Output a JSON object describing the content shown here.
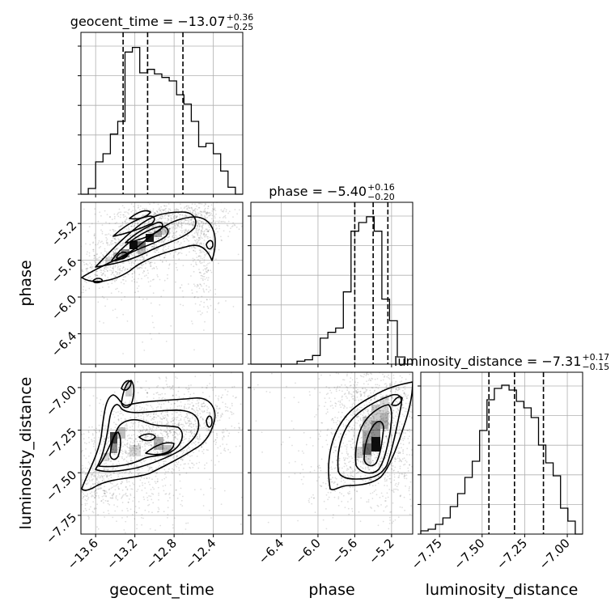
{
  "chart_data": {
    "type": "corner",
    "parameters": [
      {
        "name": "geocent_time",
        "median": -13.07,
        "plus": 0.36,
        "minus": 0.25,
        "lim": [
          -13.75,
          -12.1
        ],
        "ticks": [
          -13.6,
          -13.2,
          -12.8,
          -12.4
        ],
        "tick_labels": [
          "−13.6",
          "−13.2",
          "−12.8",
          "−12.4"
        ],
        "quantiles": [
          -13.32,
          -13.07,
          -12.71
        ]
      },
      {
        "name": "phase",
        "median": -5.4,
        "plus": 0.16,
        "minus": 0.2,
        "lim": [
          -6.73,
          -4.97
        ],
        "ticks": [
          -6.4,
          -6.0,
          -5.6,
          -5.2
        ],
        "tick_labels": [
          "−6.4",
          "−6.0",
          "−5.6",
          "−5.2"
        ],
        "quantiles": [
          -5.6,
          -5.4,
          -5.24
        ]
      },
      {
        "name": "luminosity_distance",
        "median": -7.31,
        "plus": 0.17,
        "minus": 0.15,
        "lim": [
          -7.86,
          -6.91
        ],
        "ticks": [
          -7.75,
          -7.5,
          -7.25,
          -7.0
        ],
        "tick_labels": [
          "−7.75",
          "−7.50",
          "−7.25",
          "−7.00"
        ],
        "quantiles": [
          -7.46,
          -7.31,
          -7.14
        ]
      }
    ],
    "titles": [
      {
        "base": "geocent_time = −13.07",
        "sup": "+0.36",
        "sub": "−0.25"
      },
      {
        "base": "phase = −5.40",
        "sup": "+0.16",
        "sub": "−0.20"
      },
      {
        "base": "luminosity_distance = −7.31",
        "sup": "+0.17",
        "sub": "−0.15"
      }
    ],
    "hist_geocent_time": [
      0.0,
      0.05,
      0.28,
      0.35,
      0.52,
      0.63,
      1.23,
      1.27,
      1.05,
      1.08,
      1.04,
      1.01,
      0.98,
      0.86,
      0.78,
      0.63,
      0.41,
      0.44,
      0.35,
      0.2,
      0.06,
      0.0
    ],
    "hist_phase": [
      0.0,
      0.0,
      0.0,
      0.0,
      0.0,
      0.0,
      0.02,
      0.03,
      0.06,
      0.18,
      0.22,
      0.25,
      0.5,
      0.92,
      0.98,
      1.02,
      0.92,
      0.45,
      0.3,
      0.05,
      0.0
    ],
    "hist_luminosity_distance": [
      0.02,
      0.03,
      0.06,
      0.1,
      0.17,
      0.25,
      0.35,
      0.45,
      0.64,
      0.83,
      0.9,
      0.92,
      0.89,
      0.82,
      0.78,
      0.72,
      0.55,
      0.44,
      0.36,
      0.16,
      0.08,
      0.0
    ]
  }
}
